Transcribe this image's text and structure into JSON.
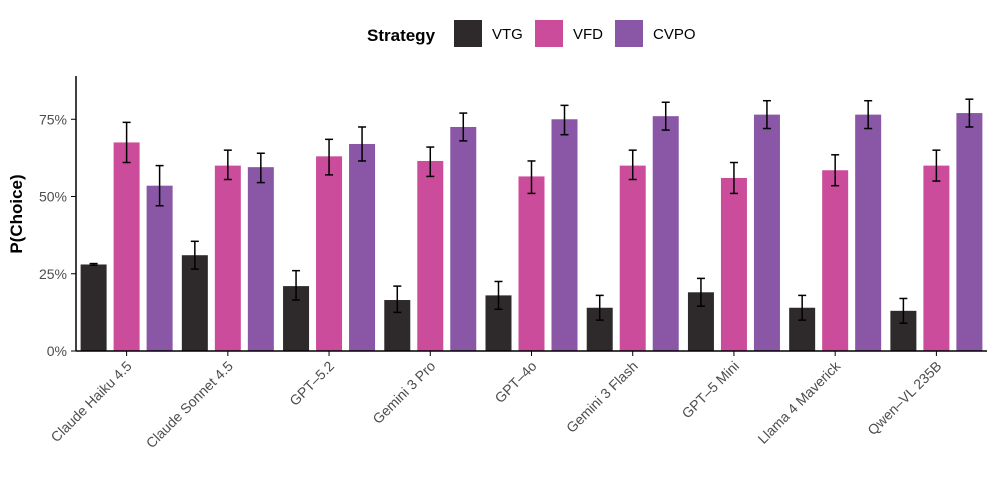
{
  "chart_data": {
    "type": "bar",
    "title": "",
    "xlabel": "",
    "ylabel": "P(Choice)",
    "ylim": [
      0,
      0.89
    ],
    "yticks": [
      0,
      0.25,
      0.5,
      0.75
    ],
    "ytick_labels": [
      "0%",
      "25%",
      "50%",
      "75%"
    ],
    "grid": false,
    "legend": {
      "title": "Strategy",
      "position": "top"
    },
    "categories": [
      "Claude Haiku 4.5",
      "Claude Sonnet 4.5",
      "GPT–5.2",
      "Gemini 3 Pro",
      "GPT–4o",
      "Gemini 3 Flash",
      "GPT–5 Mini",
      "Llama 4 Maverick",
      "Qwen–VL 235B"
    ],
    "series": [
      {
        "name": "VTG",
        "color": "#2e2a2b",
        "values": [
          0.28,
          0.31,
          0.21,
          0.165,
          0.18,
          0.14,
          0.19,
          0.14,
          0.13
        ],
        "err_low": [
          0.278,
          0.265,
          0.165,
          0.125,
          0.135,
          0.1,
          0.145,
          0.1,
          0.09
        ],
        "err_high": [
          0.283,
          0.355,
          0.26,
          0.21,
          0.225,
          0.18,
          0.235,
          0.18,
          0.17
        ]
      },
      {
        "name": "VFD",
        "color": "#cc4c9c",
        "values": [
          0.675,
          0.6,
          0.63,
          0.615,
          0.565,
          0.6,
          0.56,
          0.585,
          0.6
        ],
        "err_low": [
          0.61,
          0.555,
          0.57,
          0.565,
          0.51,
          0.555,
          0.51,
          0.535,
          0.55
        ],
        "err_high": [
          0.74,
          0.65,
          0.685,
          0.66,
          0.615,
          0.65,
          0.61,
          0.635,
          0.65
        ]
      },
      {
        "name": "CVPO",
        "color": "#8a56a6",
        "values": [
          0.535,
          0.595,
          0.67,
          0.725,
          0.75,
          0.76,
          0.765,
          0.765,
          0.77
        ],
        "err_low": [
          0.47,
          0.545,
          0.615,
          0.68,
          0.7,
          0.715,
          0.72,
          0.72,
          0.725
        ],
        "err_high": [
          0.6,
          0.64,
          0.725,
          0.77,
          0.795,
          0.805,
          0.81,
          0.81,
          0.815
        ]
      }
    ]
  }
}
